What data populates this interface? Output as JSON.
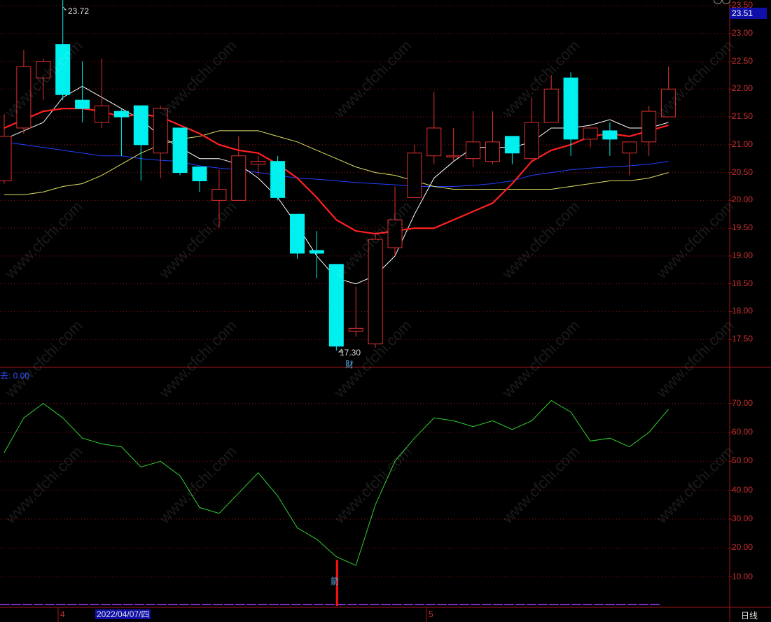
{
  "header": {
    "last_price": "23.51",
    "high_label": "23.72",
    "low_label": "17.30",
    "cai_marker": "财",
    "jian_marker": "箭",
    "indicator_label": "去: 0.00"
  },
  "footer": {
    "month_april": "4",
    "month_may": "5",
    "cursor_date": "2022/04/07/四",
    "period": "日线"
  },
  "watermark": "www.cfchi.com",
  "colors": {
    "up": "#e03030",
    "down": "#00f0f0",
    "ma5": "#ffffff",
    "ma10": "#ff2020",
    "ma20": "#e0e060",
    "ma60": "#2040ff",
    "indicator": "#30d030",
    "grid": "#8a1010"
  },
  "chart_data": [
    {
      "type": "candlestick",
      "y_ticks": [
        "23.50",
        "23.00",
        "22.50",
        "22.00",
        "21.50",
        "21.00",
        "20.50",
        "20.00",
        "19.50",
        "19.00",
        "18.50",
        "18.00",
        "17.50"
      ],
      "ylim": [
        17.0,
        23.6
      ],
      "candles": [
        {
          "o": 20.35,
          "c": 21.15,
          "h": 21.55,
          "l": 20.3
        },
        {
          "o": 21.3,
          "c": 22.4,
          "h": 22.7,
          "l": 21.2
        },
        {
          "o": 22.2,
          "c": 22.5,
          "h": 22.55,
          "l": 21.8
        },
        {
          "o": 22.8,
          "c": 21.9,
          "h": 23.72,
          "l": 21.8
        },
        {
          "o": 21.8,
          "c": 21.65,
          "h": 22.5,
          "l": 21.4
        },
        {
          "o": 21.4,
          "c": 21.7,
          "h": 22.55,
          "l": 21.3
        },
        {
          "o": 21.6,
          "c": 21.5,
          "h": 21.65,
          "l": 20.8
        },
        {
          "o": 21.7,
          "c": 21.0,
          "h": 21.7,
          "l": 20.35
        },
        {
          "o": 20.85,
          "c": 21.65,
          "h": 21.7,
          "l": 20.4
        },
        {
          "o": 21.3,
          "c": 20.5,
          "h": 21.3,
          "l": 20.45
        },
        {
          "o": 20.6,
          "c": 20.35,
          "h": 20.6,
          "l": 20.15
        },
        {
          "o": 20.0,
          "c": 20.2,
          "h": 20.55,
          "l": 19.5
        },
        {
          "o": 20.0,
          "c": 20.8,
          "h": 21.15,
          "l": 20.0
        },
        {
          "o": 20.65,
          "c": 20.7,
          "h": 20.8,
          "l": 20.45
        },
        {
          "o": 20.7,
          "c": 20.05,
          "h": 20.8,
          "l": 20.0
        },
        {
          "o": 19.75,
          "c": 19.05,
          "h": 19.75,
          "l": 18.95
        },
        {
          "o": 19.1,
          "c": 19.05,
          "h": 19.45,
          "l": 18.6
        },
        {
          "o": 18.85,
          "c": 17.38,
          "h": 18.85,
          "l": 17.3
        },
        {
          "o": 17.65,
          "c": 17.7,
          "h": 18.45,
          "l": 17.55
        },
        {
          "o": 17.42,
          "c": 19.3,
          "h": 19.4,
          "l": 17.35
        },
        {
          "o": 19.15,
          "c": 19.65,
          "h": 20.25,
          "l": 19.0
        },
        {
          "o": 20.05,
          "c": 20.85,
          "h": 21.0,
          "l": 20.05
        },
        {
          "o": 20.8,
          "c": 21.3,
          "h": 21.95,
          "l": 20.65
        },
        {
          "o": 20.8,
          "c": 20.8,
          "h": 21.3,
          "l": 20.7
        },
        {
          "o": 20.75,
          "c": 21.05,
          "h": 21.6,
          "l": 20.6
        },
        {
          "o": 20.7,
          "c": 21.05,
          "h": 21.6,
          "l": 20.65
        },
        {
          "o": 21.15,
          "c": 20.85,
          "h": 21.15,
          "l": 20.65
        },
        {
          "o": 20.75,
          "c": 21.4,
          "h": 21.85,
          "l": 20.7
        },
        {
          "o": 21.4,
          "c": 22.0,
          "h": 22.25,
          "l": 21.4
        },
        {
          "o": 22.2,
          "c": 21.1,
          "h": 22.3,
          "l": 20.8
        },
        {
          "o": 21.1,
          "c": 21.3,
          "h": 21.3,
          "l": 20.95
        },
        {
          "o": 21.25,
          "c": 21.1,
          "h": 21.4,
          "l": 20.8
        },
        {
          "o": 20.85,
          "c": 21.05,
          "h": 21.05,
          "l": 20.45
        },
        {
          "o": 21.05,
          "c": 21.6,
          "h": 21.7,
          "l": 20.8
        },
        {
          "o": 21.5,
          "c": 22.0,
          "h": 22.4,
          "l": 21.5
        }
      ],
      "ma_lines": {
        "ma5": [
          21.1,
          21.25,
          21.4,
          21.85,
          22.05,
          21.85,
          21.65,
          21.45,
          21.15,
          20.95,
          20.75,
          20.75,
          20.65,
          20.4,
          20.05,
          19.55,
          19.0,
          18.6,
          18.5,
          18.65,
          19.0,
          19.75,
          20.4,
          20.7,
          20.95,
          20.95,
          20.95,
          21.05,
          21.3,
          21.3,
          21.35,
          21.45,
          21.3,
          21.3,
          21.4
        ],
        "ma10": [
          21.3,
          21.45,
          21.6,
          21.65,
          21.65,
          21.6,
          21.5,
          21.55,
          21.5,
          21.35,
          21.2,
          21.0,
          20.9,
          20.85,
          20.65,
          20.4,
          20.05,
          19.65,
          19.45,
          19.4,
          19.45,
          19.5,
          19.5,
          19.65,
          19.8,
          19.95,
          20.3,
          20.7,
          20.9,
          21.0,
          21.15,
          21.2,
          21.15,
          21.25,
          21.35
        ],
        "ma20": [
          20.1,
          20.1,
          20.15,
          20.25,
          20.3,
          20.45,
          20.65,
          20.85,
          21.0,
          21.1,
          21.15,
          21.25,
          21.25,
          21.25,
          21.15,
          21.05,
          20.9,
          20.75,
          20.6,
          20.5,
          20.45,
          20.35,
          20.25,
          20.2,
          20.2,
          20.2,
          20.2,
          20.2,
          20.2,
          20.25,
          20.3,
          20.35,
          20.35,
          20.4,
          20.5
        ],
        "ma60": [
          21.05,
          21.0,
          20.95,
          20.9,
          20.85,
          20.8,
          20.8,
          20.75,
          20.72,
          20.7,
          20.62,
          20.58,
          20.55,
          20.5,
          20.45,
          20.4,
          20.38,
          20.35,
          20.32,
          20.3,
          20.28,
          20.25,
          20.25,
          20.25,
          20.27,
          20.3,
          20.35,
          20.45,
          20.5,
          20.55,
          20.58,
          20.6,
          20.62,
          20.65,
          20.7
        ]
      }
    },
    {
      "type": "line",
      "y_ticks": [
        "70.00",
        "60.00",
        "50.00",
        "40.00",
        "30.00",
        "20.00",
        "10.00"
      ],
      "ylim": [
        0,
        82
      ],
      "values": [
        53,
        65,
        70,
        65,
        58,
        56,
        55,
        48,
        50,
        45,
        34,
        32,
        39,
        46,
        38,
        27,
        23,
        17,
        14,
        35,
        50,
        58,
        65,
        64,
        62,
        64,
        61,
        64,
        71,
        67,
        57,
        58,
        55,
        60,
        68
      ],
      "signal_bar_index": 17
    }
  ]
}
